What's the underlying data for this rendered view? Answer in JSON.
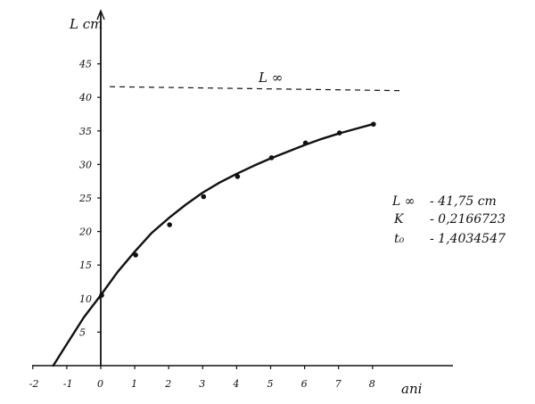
{
  "chart_data": {
    "type": "scatter",
    "title": "",
    "xlabel": "ani",
    "ylabel": "L cm",
    "xlim": [
      -2,
      8.5
    ],
    "ylim": [
      0,
      48
    ],
    "x_ticks": [
      -2,
      -1,
      0,
      1,
      2,
      3,
      4,
      5,
      6,
      7,
      8
    ],
    "y_ticks": [
      5,
      10,
      15,
      20,
      25,
      30,
      35,
      40,
      45
    ],
    "grid": false,
    "series": [
      {
        "name": "",
        "kind": "points",
        "x": [
          0,
          1,
          2,
          3,
          4,
          5,
          6,
          7,
          8
        ],
        "y": [
          10.5,
          16.5,
          21.0,
          25.2,
          28.2,
          31.0,
          33.2,
          34.7,
          36.0
        ]
      },
      {
        "name": "",
        "kind": "fitted-curve",
        "x": [
          -1.4,
          -1,
          -0.5,
          0,
          0.5,
          1,
          1.5,
          2,
          2.5,
          3,
          3.5,
          4,
          4.5,
          5,
          5.5,
          6,
          6.5,
          7,
          7.5,
          8
        ],
        "y": [
          0.0,
          3.2,
          7.2,
          10.5,
          14.0,
          17.0,
          19.8,
          22.0,
          24.0,
          25.8,
          27.3,
          28.6,
          29.8,
          30.9,
          31.9,
          32.9,
          33.8,
          34.6,
          35.3,
          36.0
        ]
      },
      {
        "name": "L ∞",
        "kind": "asymptote-dashed",
        "x": [
          0,
          8.5
        ],
        "y": [
          41.6,
          41.0
        ]
      }
    ],
    "annotations": {
      "asymptote_label": "L ∞",
      "params": [
        {
          "label": "L ∞",
          "value": "- 41,75 cm"
        },
        {
          "label": "K",
          "value": "- 0,2166723"
        },
        {
          "label": "t₀",
          "value": "- 1,4034547"
        }
      ]
    }
  }
}
